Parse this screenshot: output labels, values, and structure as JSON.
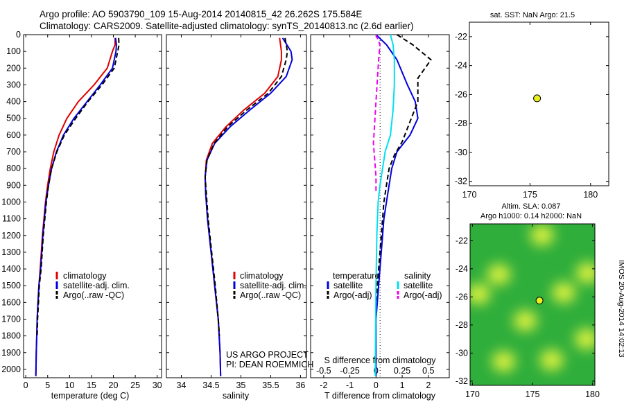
{
  "header": {
    "line1": "Argo profile: AO 5903790_109 15-Aug-2014 20140815_42 26.262S 175.584E",
    "line2": "Climatology: CARS2009. Satellite-adjusted climatology: synTS_20140813.nc (2.6d earlier)"
  },
  "credit": {
    "project": "US ARGO PROJECT",
    "pi": "PI: DEAN ROEMMICH"
  },
  "watermark": "IMOS 20-Aug-2014 14:02:13",
  "colors": {
    "climatology": "#e00000",
    "satellite": "#0000e0",
    "argo": "#000000",
    "satellite_sal": "#00e0f0",
    "argo_sal": "#f000f0",
    "map_bg": "#2fae3c",
    "map_hi": "#d8f040",
    "marker": "#e8f020"
  },
  "chart_data": [
    {
      "id": "temperature",
      "type": "line",
      "xlabel": "temperature (deg C)",
      "xlim": [
        -0.5,
        31
      ],
      "ylim": [
        2050,
        0
      ],
      "xticks": [
        0,
        5,
        10,
        15,
        20,
        25,
        30
      ],
      "yticks": [
        0,
        100,
        200,
        300,
        400,
        500,
        600,
        700,
        800,
        900,
        1000,
        1100,
        1200,
        1300,
        1400,
        1500,
        1600,
        1700,
        1800,
        1900,
        2000
      ],
      "legend": [
        "climatology",
        "satellite-adj. clim.",
        "Argo(..raw -QC)"
      ],
      "series": [
        {
          "name": "climatology",
          "color": "#e00000",
          "dash": "",
          "x": [
            20.4,
            20.4,
            19.8,
            18.6,
            15.6,
            12.0,
            9.4,
            7.6,
            6.4,
            5.6,
            5.0,
            4.5,
            3.8,
            3.3,
            3.0,
            2.8,
            2.6,
            2.5,
            2.4,
            2.3
          ],
          "y": [
            20,
            60,
            100,
            200,
            300,
            400,
            500,
            600,
            700,
            800,
            900,
            1000,
            1200,
            1400,
            1500,
            1600,
            1700,
            1800,
            1900,
            2040
          ]
        },
        {
          "name": "satellite-adj. clim.",
          "color": "#0000e0",
          "dash": "",
          "x": [
            20.5,
            20.7,
            20.6,
            19.8,
            17.0,
            14.0,
            11.0,
            8.6,
            7.0,
            5.9,
            5.2,
            4.6,
            3.9,
            3.4,
            3.0,
            2.8,
            2.6,
            2.5,
            2.4,
            2.3
          ],
          "y": [
            20,
            60,
            100,
            200,
            300,
            400,
            500,
            600,
            700,
            800,
            900,
            1000,
            1200,
            1400,
            1500,
            1600,
            1700,
            1800,
            1900,
            2040
          ]
        },
        {
          "name": "Argo(..raw -QC)",
          "color": "#000000",
          "dash": "7,4",
          "x": [
            21.2,
            21.3,
            21.0,
            20.2,
            17.4,
            14.2,
            11.4,
            8.8,
            7.1,
            5.9,
            5.2,
            4.7,
            4.0,
            3.5,
            3.1,
            2.9,
            2.7,
            2.6
          ],
          "y": [
            20,
            60,
            100,
            200,
            300,
            400,
            500,
            600,
            700,
            800,
            900,
            1000,
            1200,
            1400,
            1500,
            1600,
            1700,
            1800
          ]
        }
      ]
    },
    {
      "id": "salinity",
      "type": "line",
      "xlabel": "salinity",
      "xlim": [
        33.75,
        36.1
      ],
      "ylim": [
        2050,
        0
      ],
      "xticks": [
        34,
        34.5,
        35,
        35.5,
        36
      ],
      "legend": [
        "climatology",
        "satellite-adj. clim.",
        "Argo(..raw -QC)"
      ],
      "series": [
        {
          "name": "climatology",
          "color": "#e00000",
          "dash": "",
          "x": [
            35.65,
            35.68,
            35.68,
            35.62,
            35.4,
            35.05,
            34.75,
            34.52,
            34.42,
            34.4,
            34.41,
            34.44,
            34.5,
            34.56,
            34.62,
            34.65,
            34.66
          ],
          "y": [
            20,
            100,
            150,
            250,
            350,
            450,
            550,
            650,
            750,
            850,
            950,
            1100,
            1300,
            1500,
            1700,
            1900,
            2040
          ]
        },
        {
          "name": "satellite-adj. clim.",
          "color": "#0000e0",
          "dash": "",
          "x": [
            35.7,
            35.84,
            35.86,
            35.76,
            35.5,
            35.15,
            34.82,
            34.56,
            34.43,
            34.4,
            34.41,
            34.44,
            34.5,
            34.56,
            34.62,
            34.65,
            34.66
          ],
          "y": [
            20,
            100,
            150,
            250,
            350,
            450,
            550,
            650,
            750,
            850,
            950,
            1100,
            1300,
            1500,
            1700,
            1900,
            2040
          ]
        },
        {
          "name": "Argo(..raw -QC)",
          "color": "#000000",
          "dash": "7,4",
          "x": [
            35.74,
            35.78,
            35.76,
            35.68,
            35.46,
            35.1,
            34.78,
            34.55,
            34.43,
            34.4,
            34.42,
            34.45,
            34.51,
            34.57,
            34.62,
            34.64
          ],
          "y": [
            20,
            100,
            150,
            250,
            350,
            450,
            550,
            650,
            750,
            850,
            950,
            1100,
            1300,
            1500,
            1700,
            1800
          ]
        }
      ]
    },
    {
      "id": "difference",
      "type": "line",
      "xlabel": "T difference from climatology",
      "xlabel_top": "S difference from climatology",
      "xlim": [
        -2.5,
        2.8
      ],
      "ylim": [
        2050,
        0
      ],
      "xticks": [
        -2,
        -1,
        0,
        1,
        2
      ],
      "xticks_s": [
        -0.5,
        -0.25,
        0,
        0.25,
        0.5
      ],
      "legend_headers": [
        "temperature",
        "salinity"
      ],
      "legend": [
        "satellite",
        "Argo(-adj)",
        "satellite",
        "Argo(-adj)"
      ],
      "series": [
        {
          "name": "satellite",
          "group": "temperature",
          "color": "#0000e0",
          "dash": "",
          "x": [
            0.0,
            0.4,
            0.8,
            1.2,
            1.5,
            1.6,
            1.3,
            0.8,
            0.6,
            0.5,
            0.4,
            0.3,
            0.2,
            0.1,
            0.0,
            0.0
          ],
          "y": [
            0,
            60,
            150,
            300,
            400,
            500,
            600,
            700,
            800,
            900,
            1000,
            1100,
            1300,
            1500,
            1700,
            2040
          ]
        },
        {
          "name": "Argo(-adj)",
          "group": "temperature",
          "color": "#000000",
          "dash": "7,4",
          "x": [
            0.8,
            1.4,
            2.1,
            1.6,
            1.6,
            1.2,
            1.0,
            0.7,
            0.5,
            0.4,
            0.3,
            0.2,
            0.1,
            0.0
          ],
          "y": [
            0,
            60,
            150,
            260,
            400,
            560,
            640,
            720,
            800,
            900,
            1000,
            1200,
            1400,
            1600
          ]
        },
        {
          "name": "satellite",
          "group": "salinity",
          "color": "#00e0f0",
          "dash": "",
          "x": [
            0.55,
            0.65,
            0.7,
            0.7,
            0.65,
            0.55,
            0.35,
            0.25,
            0.15,
            0.08,
            0.03,
            0.0,
            -0.03
          ],
          "y": [
            0,
            60,
            150,
            300,
            450,
            600,
            700,
            800,
            900,
            1000,
            1200,
            1500,
            2040
          ]
        },
        {
          "name": "Argo(-adj)",
          "group": "salinity",
          "color": "#f000f0",
          "dash": "7,4",
          "x": [
            0.0,
            0.15,
            0.1,
            0.0,
            -0.1,
            -0.05,
            0.0,
            0.0
          ],
          "y": [
            0,
            60,
            150,
            400,
            650,
            750,
            850,
            950
          ]
        }
      ]
    },
    {
      "id": "sst_map",
      "type": "scatter",
      "title": "sat. SST: NaN Argo: 21.5",
      "xlim": [
        170,
        181.5
      ],
      "ylim": [
        -32.3,
        -21
      ],
      "xticks": [
        170,
        175,
        180
      ],
      "yticks": [
        -22,
        -24,
        -26,
        -28,
        -30,
        -32
      ],
      "points": [
        {
          "x": 175.584,
          "y": -26.262
        }
      ]
    },
    {
      "id": "sla_map",
      "type": "heatmap",
      "title": "Altim. SLA: 0.087",
      "subtitle": "Argo h1000: 0.14 h2000: NaN",
      "xlim": [
        169.8,
        180.2
      ],
      "ylim": [
        -32.3,
        -20.8
      ],
      "xticks": [
        170,
        175,
        180
      ],
      "yticks": [
        -22,
        -24,
        -26,
        -28,
        -30,
        -32
      ],
      "points": [
        {
          "x": 175.584,
          "y": -26.262
        }
      ],
      "highlights": [
        {
          "x": 175.8,
          "y": -21.6
        },
        {
          "x": 172.2,
          "y": -24.4
        },
        {
          "x": 170.5,
          "y": -25.8
        },
        {
          "x": 179.6,
          "y": -24.3
        },
        {
          "x": 177.6,
          "y": -25.7
        },
        {
          "x": 174.4,
          "y": -27.7
        },
        {
          "x": 172.6,
          "y": -30.6
        },
        {
          "x": 176.6,
          "y": -30.5
        },
        {
          "x": 179.5,
          "y": -29.0
        }
      ]
    }
  ]
}
